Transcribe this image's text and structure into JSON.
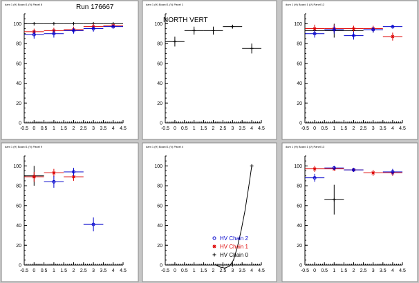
{
  "pads": [
    {
      "label": "dam 1 (H) Board 1 (V) Panel 8",
      "title": "Run 176667",
      "chart_data": {
        "type": "scatter",
        "xlim": [
          -0.5,
          4.5
        ],
        "ylim": [
          0,
          110
        ],
        "x_ticks": [
          "-0.5",
          "0",
          "0.5",
          "1",
          "1.5",
          "2",
          "2.5",
          "3",
          "3.5",
          "4",
          "4.5"
        ],
        "y_ticks": [
          "0",
          "20",
          "40",
          "60",
          "80",
          "100"
        ],
        "series": [
          {
            "color": "#000000",
            "marker": "plus",
            "points": [
              {
                "x": 0,
                "y": 100,
                "xerr": 0.5,
                "yerr": 0
              },
              {
                "x": 1,
                "y": 100,
                "xerr": 0.5,
                "yerr": 0
              },
              {
                "x": 2,
                "y": 100,
                "xerr": 0.5,
                "yerr": 0
              },
              {
                "x": 3,
                "y": 100,
                "xerr": 0.5,
                "yerr": 0
              },
              {
                "x": 4,
                "y": 100,
                "xerr": 0.5,
                "yerr": 0
              }
            ]
          },
          {
            "color": "#dd0000",
            "marker": "star",
            "points": [
              {
                "x": 0,
                "y": 92,
                "xerr": 0.5,
                "yerr": 3
              },
              {
                "x": 1,
                "y": 93,
                "xerr": 0.5,
                "yerr": 3
              },
              {
                "x": 2,
                "y": 94,
                "xerr": 0.5,
                "yerr": 3
              },
              {
                "x": 3,
                "y": 97,
                "xerr": 0.5,
                "yerr": 3
              },
              {
                "x": 4,
                "y": 98,
                "xerr": 0.5,
                "yerr": 2
              }
            ]
          },
          {
            "color": "#0000cc",
            "marker": "circle",
            "points": [
              {
                "x": 0,
                "y": 89,
                "xerr": 0.5,
                "yerr": 4
              },
              {
                "x": 1,
                "y": 90,
                "xerr": 0.5,
                "yerr": 4
              },
              {
                "x": 2,
                "y": 93,
                "xerr": 0.5,
                "yerr": 3
              },
              {
                "x": 3,
                "y": 95,
                "xerr": 0.5,
                "yerr": 3
              },
              {
                "x": 4,
                "y": 97,
                "xerr": 0.5,
                "yerr": 2
              }
            ]
          }
        ]
      }
    },
    {
      "label": "dam 1 (H) Board 1 (V) Panel 1",
      "title": "NORTH VERT",
      "chart_data": {
        "type": "scatter",
        "xlim": [
          -0.5,
          4.5
        ],
        "ylim": [
          0,
          110
        ],
        "x_ticks": [
          "-0.5",
          "0",
          "0.5",
          "1",
          "1.5",
          "2",
          "2.5",
          "3",
          "3.5",
          "4",
          "4.5"
        ],
        "y_ticks": [
          "0",
          "20",
          "40",
          "60",
          "80",
          "100"
        ],
        "series": [
          {
            "color": "#000000",
            "marker": "plus",
            "points": [
              {
                "x": 0,
                "y": 82,
                "xerr": 0.5,
                "yerr": 5
              },
              {
                "x": 1,
                "y": 93,
                "xerr": 0.5,
                "yerr": 4
              },
              {
                "x": 2,
                "y": 93,
                "xerr": 0.5,
                "yerr": 4
              },
              {
                "x": 3,
                "y": 97,
                "xerr": 0.5,
                "yerr": 2
              },
              {
                "x": 4,
                "y": 75,
                "xerr": 0.5,
                "yerr": 5
              }
            ]
          }
        ]
      }
    },
    {
      "label": "dam 1 (H) Board 1 (V) Panel 12",
      "title": "",
      "chart_data": {
        "type": "scatter",
        "xlim": [
          -0.5,
          4.5
        ],
        "ylim": [
          0,
          110
        ],
        "x_ticks": [
          "-0.5",
          "0",
          "0.5",
          "1",
          "1.5",
          "2",
          "2.5",
          "3",
          "3.5",
          "4",
          "4.5"
        ],
        "y_ticks": [
          "0",
          "20",
          "40",
          "60",
          "80",
          "100"
        ],
        "series": [
          {
            "color": "#000000",
            "marker": "plus",
            "points": [
              {
                "x": 0,
                "y": 93,
                "xerr": 0.5,
                "yerr": 4
              },
              {
                "x": 1,
                "y": 93,
                "xerr": 0.5,
                "yerr": 7
              },
              {
                "x": 2,
                "y": 93,
                "xerr": 0.5,
                "yerr": 4
              },
              {
                "x": 3,
                "y": 94,
                "xerr": 0.5,
                "yerr": 3
              }
            ]
          },
          {
            "color": "#dd0000",
            "marker": "star",
            "points": [
              {
                "x": 0,
                "y": 95,
                "xerr": 0.5,
                "yerr": 4
              },
              {
                "x": 1,
                "y": 95,
                "xerr": 0.5,
                "yerr": 4
              },
              {
                "x": 2,
                "y": 95,
                "xerr": 0.5,
                "yerr": 3
              },
              {
                "x": 3,
                "y": 95,
                "xerr": 0.5,
                "yerr": 3
              },
              {
                "x": 4,
                "y": 87,
                "xerr": 0.5,
                "yerr": 4
              }
            ]
          },
          {
            "color": "#0000cc",
            "marker": "circle",
            "points": [
              {
                "x": 0,
                "y": 90,
                "xerr": 0.5,
                "yerr": 4
              },
              {
                "x": 1,
                "y": 94,
                "xerr": 0.5,
                "yerr": 4
              },
              {
                "x": 2,
                "y": 88,
                "xerr": 0.5,
                "yerr": 4
              },
              {
                "x": 3,
                "y": 94,
                "xerr": 0.5,
                "yerr": 3
              },
              {
                "x": 4,
                "y": 97,
                "xerr": 0.5,
                "yerr": 2
              }
            ]
          }
        ]
      }
    },
    {
      "label": "dam 1 (H) Board 1 (V) Panel 9",
      "title": "",
      "chart_data": {
        "type": "scatter",
        "xlim": [
          -0.5,
          4.5
        ],
        "ylim": [
          0,
          110
        ],
        "x_ticks": [
          "-0.5",
          "0",
          "0.5",
          "1",
          "1.5",
          "2",
          "2.5",
          "3",
          "3.5",
          "4",
          "4.5"
        ],
        "y_ticks": [
          "0",
          "20",
          "40",
          "60",
          "80",
          "100"
        ],
        "series": [
          {
            "color": "#000000",
            "marker": "plus",
            "points": [
              {
                "x": 0,
                "y": 90,
                "xerr": 0.5,
                "yerr": 10
              }
            ]
          },
          {
            "color": "#dd0000",
            "marker": "star",
            "points": [
              {
                "x": 0,
                "y": 89,
                "xerr": 0.5,
                "yerr": 5
              },
              {
                "x": 1,
                "y": 93,
                "xerr": 0.5,
                "yerr": 4
              },
              {
                "x": 2,
                "y": 89,
                "xerr": 0.5,
                "yerr": 4
              }
            ]
          },
          {
            "color": "#0000cc",
            "marker": "circle",
            "points": [
              {
                "x": 1,
                "y": 84,
                "xerr": 0.5,
                "yerr": 6
              },
              {
                "x": 2,
                "y": 94,
                "xerr": 0.5,
                "yerr": 4
              },
              {
                "x": 3,
                "y": 41,
                "xerr": 0.5,
                "yerr": 7
              }
            ]
          }
        ]
      }
    },
    {
      "label": "dam 1 (H) Board 1 (V) Panel 4",
      "title": "",
      "chart_data": {
        "type": "line",
        "xlim": [
          -0.5,
          4.5
        ],
        "ylim": [
          0,
          110
        ],
        "x_ticks": [
          "-0.5",
          "0",
          "0.5",
          "1",
          "1.5",
          "2",
          "2.5",
          "3",
          "3.5",
          "4",
          "4.5"
        ],
        "y_ticks": [
          "0",
          "20",
          "40",
          "60",
          "80",
          "100"
        ],
        "series": [
          {
            "color": "#000000",
            "marker": "plus",
            "points": [
              {
                "x": 2.5,
                "y": 0
              },
              {
                "x": 3,
                "y": 0
              },
              {
                "x": 4,
                "y": 100
              }
            ]
          }
        ],
        "curve": [
          {
            "x": 2.15,
            "y": 0
          },
          {
            "x": 2.35,
            "y": -2
          },
          {
            "x": 2.6,
            "y": -3
          },
          {
            "x": 2.85,
            "y": -1
          },
          {
            "x": 3.05,
            "y": 5
          },
          {
            "x": 3.25,
            "y": 18
          },
          {
            "x": 3.45,
            "y": 35
          },
          {
            "x": 3.65,
            "y": 55
          },
          {
            "x": 3.85,
            "y": 80
          },
          {
            "x": 4,
            "y": 100
          }
        ],
        "legend": [
          {
            "label": "HV Chain 2",
            "color": "#0000cc",
            "marker": "circle"
          },
          {
            "label": "HV Chain 1",
            "color": "#dd0000",
            "marker": "star"
          },
          {
            "label": "HV Chain 0",
            "color": "#000000",
            "marker": "plus"
          }
        ]
      }
    },
    {
      "label": "dam 1 (H) Board 1 (V) Panel 13",
      "title": "",
      "chart_data": {
        "type": "scatter",
        "xlim": [
          -0.5,
          4.5
        ],
        "ylim": [
          0,
          110
        ],
        "x_ticks": [
          "-0.5",
          "0",
          "0.5",
          "1",
          "1.5",
          "2",
          "2.5",
          "3",
          "3.5",
          "4",
          "4.5"
        ],
        "y_ticks": [
          "0",
          "20",
          "40",
          "60",
          "80",
          "100"
        ],
        "series": [
          {
            "color": "#000000",
            "marker": "plus",
            "points": [
              {
                "x": 1,
                "y": 66,
                "xerr": 0.5,
                "yerr": 15
              }
            ]
          },
          {
            "color": "#dd0000",
            "marker": "star",
            "points": [
              {
                "x": 0,
                "y": 97,
                "xerr": 0.5,
                "yerr": 3
              },
              {
                "x": 1,
                "y": 97,
                "xerr": 0.5,
                "yerr": 2
              },
              {
                "x": 2,
                "y": 96,
                "xerr": 0.5,
                "yerr": 2
              },
              {
                "x": 3,
                "y": 93,
                "xerr": 0.5,
                "yerr": 3
              },
              {
                "x": 4,
                "y": 93,
                "xerr": 0.5,
                "yerr": 3
              }
            ]
          },
          {
            "color": "#0000cc",
            "marker": "circle",
            "points": [
              {
                "x": 0,
                "y": 88,
                "xerr": 0.5,
                "yerr": 4
              },
              {
                "x": 1,
                "y": 98,
                "xerr": 0.5,
                "yerr": 2
              },
              {
                "x": 2,
                "y": 96,
                "xerr": 0.5,
                "yerr": 2
              },
              {
                "x": 4,
                "y": 94,
                "xerr": 0.5,
                "yerr": 3
              }
            ]
          }
        ]
      }
    }
  ]
}
